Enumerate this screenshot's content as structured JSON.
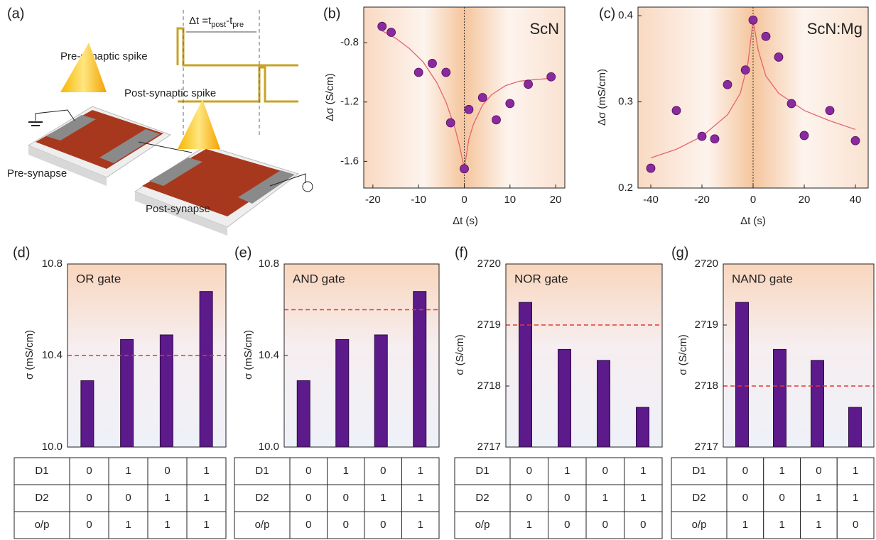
{
  "diagram": {
    "label": "(a)",
    "formula": [
      "Δt =t",
      "post",
      "-t",
      "pre"
    ],
    "pre_spike": "Pre-synaptic  spike",
    "post_spike": "Post-synaptic spike",
    "pre_synapse": "Pre-synapse",
    "post_synapse": "Post-synapse"
  },
  "chart_data": [
    {
      "type": "scatter",
      "label": "(b)",
      "annotation": "ScN",
      "x_label": "Δt (s)",
      "y_label": "Δσ (S/cm)",
      "xlim": [
        -22,
        22
      ],
      "xticks": [
        -20,
        -10,
        0,
        10,
        20
      ],
      "ylim": [
        -1.78,
        -0.56
      ],
      "yticks": [
        -0.8,
        -1.2,
        -1.6
      ],
      "vline": 0,
      "points": {
        "color": "#8a2a9e",
        "x": [
          -18,
          -16,
          -10,
          -7,
          -4,
          -3,
          0,
          1,
          4,
          7,
          10,
          14,
          19
        ],
        "values": [
          -0.69,
          -0.73,
          -1.0,
          -0.94,
          -1.0,
          -1.34,
          -1.65,
          -1.25,
          -1.17,
          -1.32,
          -1.21,
          -1.08,
          -1.03
        ]
      },
      "fit": {
        "color": "#e8636e",
        "x": [
          -18,
          -15,
          -12,
          -9,
          -6,
          -4,
          -2,
          -1,
          0,
          1,
          2,
          4,
          6,
          9,
          12,
          15,
          19
        ],
        "values": [
          -0.72,
          -0.77,
          -0.84,
          -0.93,
          -1.07,
          -1.2,
          -1.38,
          -1.5,
          -1.65,
          -1.45,
          -1.35,
          -1.22,
          -1.15,
          -1.09,
          -1.06,
          -1.05,
          -1.04
        ]
      }
    },
    {
      "type": "scatter",
      "label": "(c)",
      "annotation": "ScN:Mg",
      "x_label": "Δt (s)",
      "y_label": "Δσ (mS/cm)",
      "xlim": [
        -45,
        45
      ],
      "xticks": [
        -40,
        -20,
        0,
        20,
        40
      ],
      "ylim": [
        0.2,
        0.41
      ],
      "yticks": [
        0.2,
        0.3,
        0.4
      ],
      "vline": 0,
      "points": {
        "color": "#8a2a9e",
        "x": [
          -40,
          -30,
          -20,
          -15,
          -10,
          -3,
          0,
          5,
          10,
          15,
          20,
          30,
          40
        ],
        "values": [
          0.223,
          0.29,
          0.26,
          0.257,
          0.32,
          0.337,
          0.395,
          0.376,
          0.352,
          0.298,
          0.261,
          0.29,
          0.255
        ]
      },
      "fit": {
        "color": "#e8636e",
        "x": [
          -40,
          -30,
          -20,
          -10,
          -5,
          -2,
          0,
          2,
          5,
          10,
          20,
          30,
          40
        ],
        "values": [
          0.235,
          0.245,
          0.26,
          0.285,
          0.31,
          0.345,
          0.395,
          0.36,
          0.33,
          0.31,
          0.29,
          0.278,
          0.268
        ]
      }
    },
    {
      "type": "bar",
      "label": "(d)",
      "annotation": "OR gate",
      "y_label": "σ (mS/cm)",
      "color": "#5c1a8a",
      "threshold_color": "#e53935",
      "ylim": [
        10,
        10.8
      ],
      "yticks": [
        {
          "value": 10,
          "label": "10.0"
        },
        10.4,
        10.8
      ],
      "values": [
        10.29,
        10.47,
        10.49,
        10.68
      ],
      "threshold": 10.4,
      "table": [
        [
          "D1",
          "0",
          "1",
          "0",
          "1"
        ],
        [
          "D2",
          "0",
          "0",
          "1",
          "1"
        ],
        [
          "o/p",
          "0",
          "1",
          "1",
          "1"
        ]
      ]
    },
    {
      "type": "bar",
      "label": "(e)",
      "annotation": "AND gate",
      "y_label": "σ (mS/cm)",
      "color": "#5c1a8a",
      "threshold_color": "#e53935",
      "ylim": [
        10,
        10.8
      ],
      "yticks": [
        {
          "value": 10,
          "label": "10.0"
        },
        10.4,
        10.8
      ],
      "values": [
        10.29,
        10.47,
        10.49,
        10.68
      ],
      "threshold": 10.6,
      "table": [
        [
          "D1",
          "0",
          "1",
          "0",
          "1"
        ],
        [
          "D2",
          "0",
          "0",
          "1",
          "1"
        ],
        [
          "o/p",
          "0",
          "0",
          "0",
          "1"
        ]
      ]
    },
    {
      "type": "bar",
      "label": "(f)",
      "annotation": "NOR gate",
      "y_label": "σ (S/cm)",
      "color": "#5c1a8a",
      "threshold_color": "#e53935",
      "ylim": [
        2717,
        2720
      ],
      "yticks": [
        2717,
        2718,
        2719,
        2720
      ],
      "values": [
        2719.37,
        2718.6,
        2718.42,
        2717.65
      ],
      "threshold": 2719,
      "table": [
        [
          "D1",
          "0",
          "1",
          "0",
          "1"
        ],
        [
          "D2",
          "0",
          "0",
          "1",
          "1"
        ],
        [
          "o/p",
          "1",
          "0",
          "0",
          "0"
        ]
      ]
    },
    {
      "type": "bar",
      "label": "(g)",
      "annotation": "NAND gate",
      "y_label": "σ (S/cm)",
      "color": "#5c1a8a",
      "threshold_color": "#e53935",
      "ylim": [
        2717,
        2720
      ],
      "yticks": [
        2717,
        2718,
        2719,
        2720
      ],
      "values": [
        2719.37,
        2718.6,
        2718.42,
        2717.65
      ],
      "threshold": 2718,
      "table": [
        [
          "D1",
          "0",
          "1",
          "0",
          "1"
        ],
        [
          "D2",
          "0",
          "0",
          "1",
          "1"
        ],
        [
          "o/p",
          "1",
          "1",
          "1",
          "0"
        ]
      ]
    }
  ]
}
